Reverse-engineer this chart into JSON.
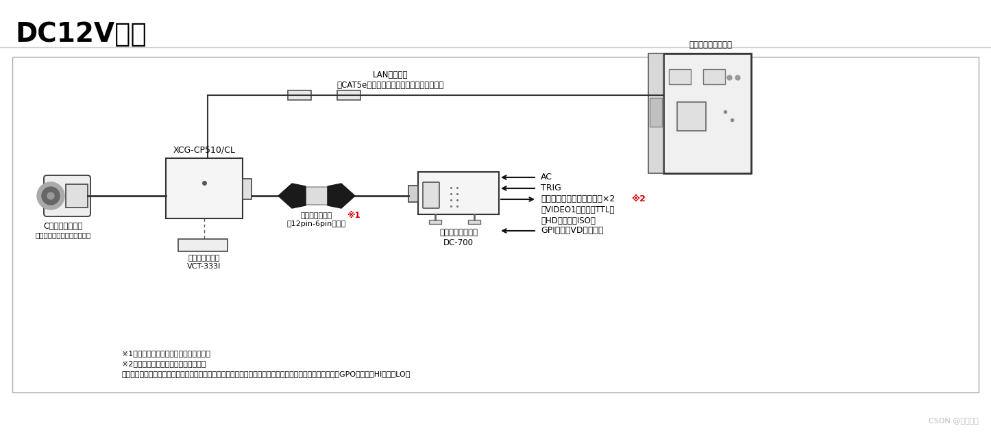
{
  "title": "DC12V接続",
  "bg_color": "#ffffff",
  "border_color": "#aaaaaa",
  "text_color": "#000000",
  "red_color": "#dd0000",
  "lens_label": "Cマウントレンズ",
  "lens_sublabel": "推奨レンズ：高解像度レンズ",
  "camera_label": "XCG-CP510/CL",
  "tripod_label": "三脚アダプター\nVCT-333I",
  "cable_label": "カメラケーブル\n（12pin-6pin変換）",
  "cable_note": "※1",
  "lan_label": "LANケーブル\n（CAT5eまたは上位規格をご使用ください）",
  "network_label": "ネットワークカード",
  "adapter_label": "カメラアダプター\nDC-700",
  "ac_label": "AC",
  "trig_label": "TRIG",
  "multi_label": "マルチファンクション出力×2",
  "multi_note": "※2",
  "video_label": "（VIDEO1ライン：TTL）",
  "hd_label": "（HDライン：ISO）",
  "gpi_label": "GPI入力（VDライン）",
  "note1": "※1詳しくは特約店におたずねください。",
  "note2": "※2マルチファンクション出力について",
  "note3": "　設定により、次の信号から選択することが出来ます。エクスポージャ出力／ストロボコントロール出力／GPO（固定値HIまたはLO）",
  "csdn_label": "CSDN @深度混淆"
}
